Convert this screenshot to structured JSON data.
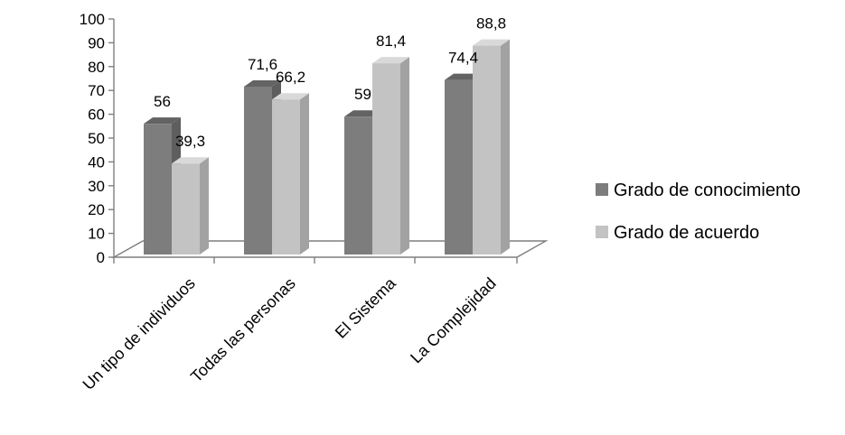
{
  "chart_data": {
    "type": "bar",
    "title": "",
    "xlabel": "",
    "ylabel": "",
    "categories": [
      "Un tipo de individuos",
      "Todas las personas",
      "El Sistema",
      "La Complejidad"
    ],
    "series": [
      {
        "name": "Grado de conocimiento",
        "values": [
          56,
          71.6,
          59,
          74.4
        ],
        "labels": [
          "56",
          "71,6",
          "59",
          "74,4"
        ]
      },
      {
        "name": "Grado de acuerdo",
        "values": [
          39.3,
          66.2,
          81.4,
          88.8
        ],
        "labels": [
          "39,3",
          "66,2",
          "81,4",
          "88,8"
        ]
      }
    ],
    "ylim": [
      0,
      100
    ],
    "yticks": [
      0,
      10,
      20,
      30,
      40,
      50,
      60,
      70,
      80,
      90,
      100
    ],
    "legend_position": "right",
    "grid": false,
    "style": "3d-clustered-column",
    "colors": {
      "Grado de conocimiento": {
        "front": "#7d7d7d",
        "side": "#5e5e5e",
        "top": "#636363"
      },
      "Grado de acuerdo": {
        "front": "#c3c3c3",
        "side": "#a2a2a2",
        "top": "#d9d9d9"
      },
      "axis": "#7f7f7f"
    }
  }
}
